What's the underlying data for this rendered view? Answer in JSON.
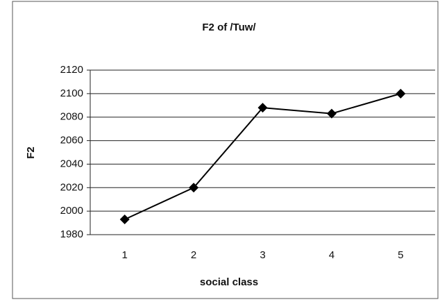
{
  "chart_data": {
    "type": "line",
    "title": "F2 of /Tuw/",
    "x_label": "social class",
    "y_label": "F2",
    "categories": [
      "1",
      "2",
      "3",
      "4",
      "5"
    ],
    "series": [
      {
        "name": "F2",
        "color": "#000000",
        "values": [
          1993,
          2020,
          2088,
          2083,
          2100
        ]
      }
    ],
    "ylim": [
      1980,
      2120
    ],
    "yticks": [
      1980,
      2000,
      2020,
      2040,
      2060,
      2080,
      2100,
      2120
    ],
    "grid": true
  }
}
